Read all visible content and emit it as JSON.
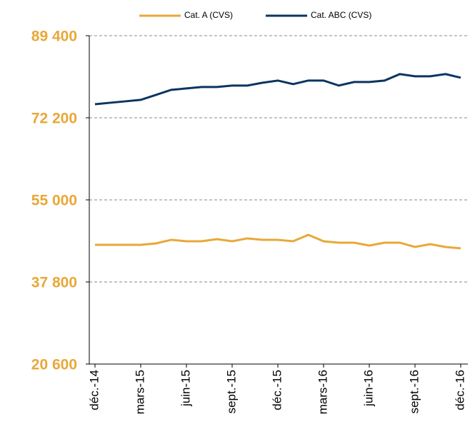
{
  "chart_data": {
    "type": "line",
    "categories": [
      "déc.-14",
      null,
      null,
      "mars-15",
      null,
      null,
      "juin-15",
      null,
      null,
      "sept.-15",
      null,
      null,
      "déc.-15",
      null,
      null,
      "mars-16",
      null,
      null,
      "juin-16",
      null,
      null,
      "sept.-16",
      null,
      null,
      "déc.-16"
    ],
    "series": [
      {
        "name": "Cat. A (CVS)",
        "color": "#e8a838",
        "values": [
          45580,
          45580,
          45580,
          45580,
          45880,
          46630,
          46330,
          46330,
          46780,
          46330,
          46930,
          46630,
          46630,
          46330,
          47680,
          46330,
          46030,
          46030,
          45430,
          46030,
          46030,
          45130,
          45730,
          45130,
          44840
        ]
      },
      {
        "name": "Cat. ABC (CVS)",
        "color": "#0b3560",
        "values": [
          75050,
          75350,
          75650,
          75950,
          77000,
          78050,
          78350,
          78650,
          78650,
          78950,
          78950,
          79550,
          80000,
          79250,
          80000,
          80000,
          78950,
          79700,
          79700,
          80000,
          81350,
          80900,
          80900,
          81350,
          80600
        ]
      }
    ],
    "ylim": [
      20600,
      89400
    ],
    "yticks": [
      {
        "value": 20600,
        "label": "20 600"
      },
      {
        "value": 37800,
        "label": "37 800"
      },
      {
        "value": 55000,
        "label": "55 000"
      },
      {
        "value": 72200,
        "label": "72 200"
      },
      {
        "value": 89400,
        "label": "89 400"
      }
    ],
    "grid": true,
    "legend": "top"
  }
}
